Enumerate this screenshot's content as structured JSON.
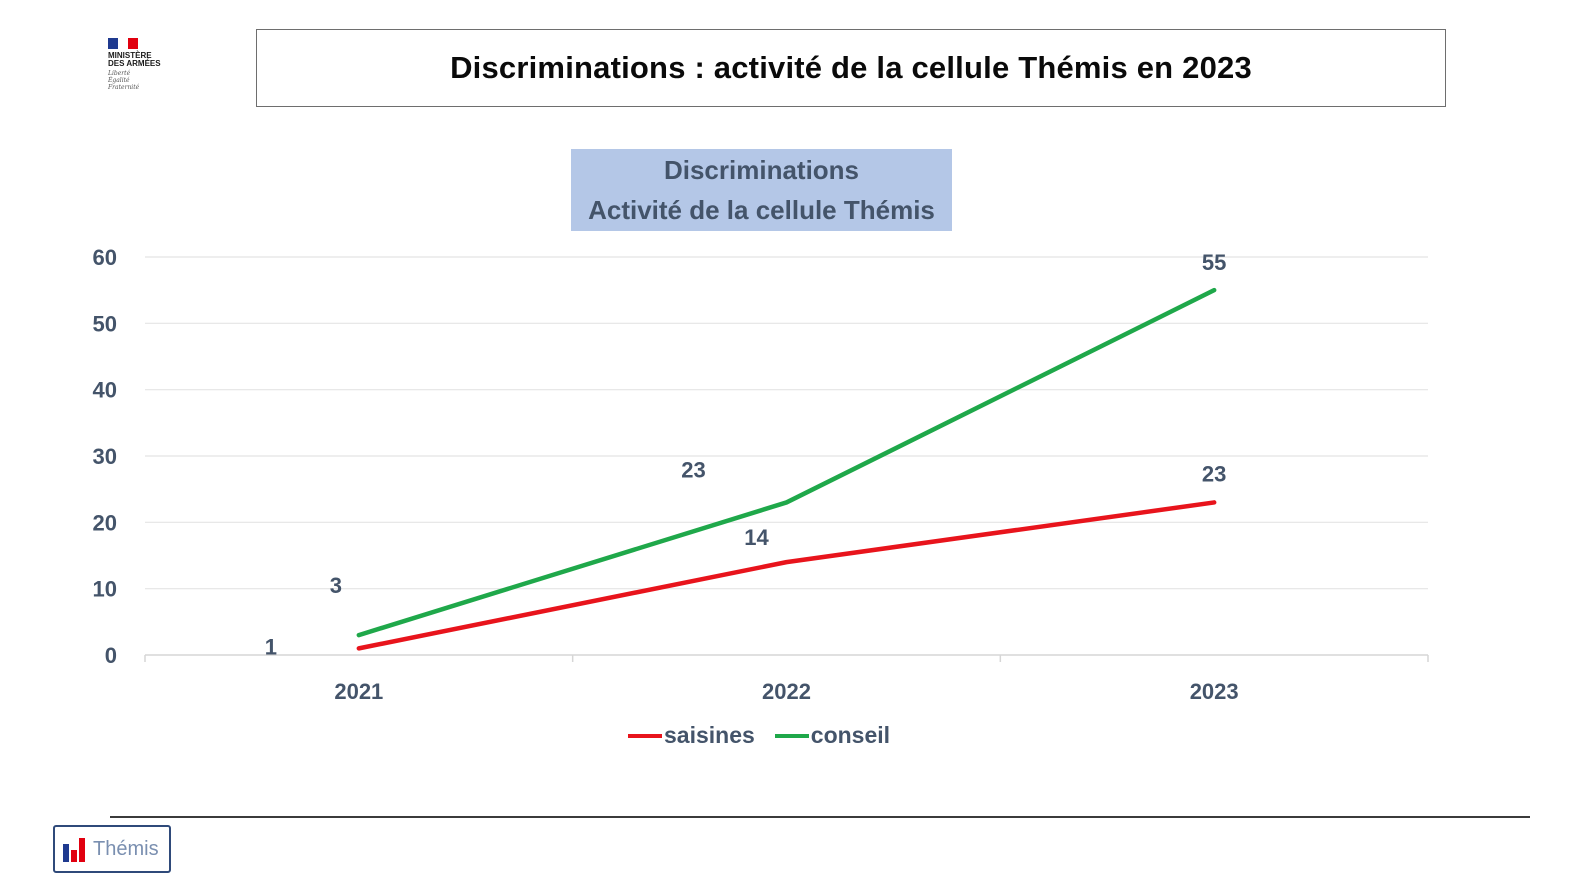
{
  "header": {
    "title": "Discriminations : activité de la cellule Thémis en 2023"
  },
  "logo": {
    "lines": [
      "MINISTÈRE",
      "DES ARMÉES"
    ],
    "motto": [
      "Liberté",
      "Égalité",
      "Fraternité"
    ]
  },
  "footer": {
    "badge_label": "Thémis"
  },
  "colors": {
    "saisines": "#e8141c",
    "conseil": "#1fa84a",
    "title_bg": "#b4c7e7",
    "text": "#44546a"
  },
  "chart_data": {
    "type": "line",
    "title": [
      "Discriminations",
      "Activité de la cellule Thémis"
    ],
    "categories": [
      "2021",
      "2022",
      "2023"
    ],
    "series": [
      {
        "name": "saisines",
        "values": [
          1,
          14,
          23
        ]
      },
      {
        "name": "conseil",
        "values": [
          3,
          23,
          55
        ]
      }
    ],
    "ylim": [
      0,
      60
    ],
    "yticks": [
      "0",
      "10",
      "20",
      "30",
      "40",
      "50",
      "60"
    ],
    "grid": true,
    "legend": "bottom"
  }
}
